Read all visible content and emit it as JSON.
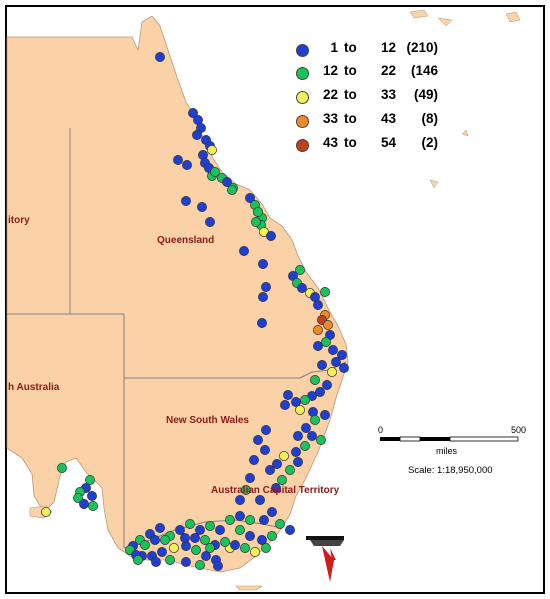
{
  "map": {
    "regions": {
      "queensland": "Queensland",
      "new_south_wales": "New South Wales",
      "act": "Australian Capital Territory",
      "south_australia_partial": "h Australia",
      "northern_territory_partial": "itory"
    },
    "legend": [
      {
        "min": "1",
        "to": "to",
        "max": "12",
        "count": "(210)",
        "color": "#1f3fd4"
      },
      {
        "min": "12",
        "to": "to",
        "max": "22",
        "count": "(146",
        "color": "#19c25a"
      },
      {
        "min": "22",
        "to": "to",
        "max": "33",
        "count": "(49)",
        "color": "#f4f05a"
      },
      {
        "min": "33",
        "to": "to",
        "max": "43",
        "count": "(8)",
        "color": "#ef8a2a"
      },
      {
        "min": "43",
        "to": "to",
        "max": "54",
        "count": "(2)",
        "color": "#c2401a"
      }
    ],
    "scale_bar": {
      "start": "0",
      "end": "500",
      "unit": "miles",
      "ratio": "Scale: 1:18,950,000"
    },
    "north_arrow": "north-arrow",
    "colors": {
      "land": "#fbd2a8",
      "sea": "#ffffff",
      "border": "#808080",
      "label": "#8b1a1a"
    }
  }
}
